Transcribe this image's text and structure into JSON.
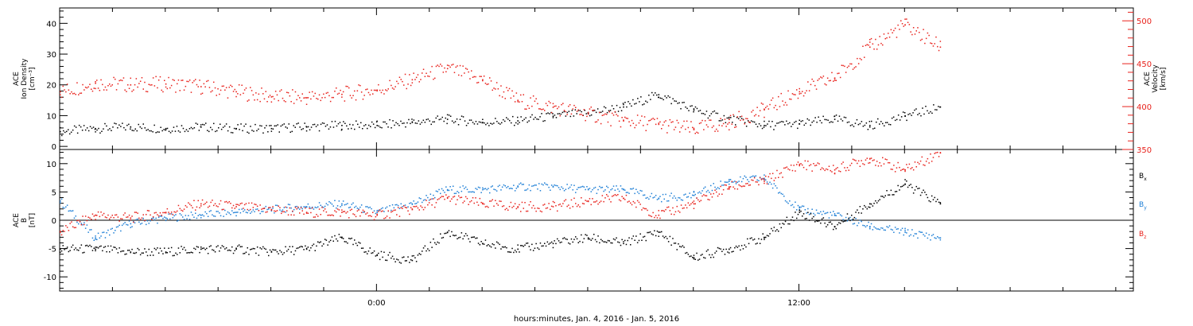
{
  "colors": {
    "black": "#000000",
    "red": "#e8221c",
    "blue": "#1e7fd6",
    "background": "#ffffff"
  },
  "time_axis": {
    "label": "hours:minutes, Jan.  4, 2016 - Jan.  5, 2016",
    "range_hours": [
      -9,
      21.5
    ],
    "major_ticks": [
      {
        "value": 0,
        "label": "0:00"
      },
      {
        "value": 12,
        "label": "12:00"
      }
    ],
    "minor_tick_step_hours": 1.5
  },
  "chart_data": [
    {
      "type": "scatter",
      "panel": "plasma",
      "ylabel_left": [
        "ACE",
        "Ion Density",
        "[cm⁻³]"
      ],
      "ylabel_right": [
        "ACE",
        "Velocity",
        "[km/s]"
      ],
      "ylim_left": [
        -1,
        45
      ],
      "yticks_left": [
        0,
        10,
        20,
        30,
        40
      ],
      "ylim_right": [
        350,
        515
      ],
      "yticks_right": [
        350,
        400,
        450,
        500
      ],
      "grid": false,
      "series": [
        {
          "axis": "left",
          "color": "black",
          "x": [
            -9.0,
            -8.0,
            -7.0,
            -6.0,
            -5.0,
            -4.0,
            -3.0,
            -2.0,
            -1.0,
            0.0,
            1.0,
            2.0,
            3.0,
            4.0,
            5.0,
            6.0,
            7.0,
            8.0,
            9.0,
            10.0,
            11.0,
            12.0,
            13.0,
            14.0,
            15.0,
            16.0
          ],
          "y": [
            5,
            6,
            6.5,
            6,
            6.5,
            6,
            6,
            6.5,
            7,
            7,
            8,
            9,
            8,
            8.5,
            10,
            11,
            13,
            17,
            12,
            9,
            7,
            7.5,
            9,
            7,
            10,
            13
          ]
        },
        {
          "axis": "right",
          "color": "red",
          "x": [
            -9.0,
            -8.0,
            -7.0,
            -6.0,
            -5.0,
            -4.0,
            -3.0,
            -2.0,
            -1.0,
            0.0,
            1.0,
            2.0,
            3.0,
            4.0,
            5.0,
            6.0,
            7.0,
            8.0,
            9.0,
            10.0,
            11.0,
            12.0,
            13.0,
            14.0,
            15.0,
            16.0
          ],
          "y": [
            418,
            428,
            426,
            427,
            424,
            418,
            412,
            411,
            415,
            420,
            432,
            445,
            432,
            408,
            400,
            392,
            384,
            380,
            374,
            382,
            397,
            418,
            434,
            470,
            496,
            470
          ]
        }
      ]
    },
    {
      "type": "scatter",
      "panel": "magnetic-field",
      "ylabel_left": [
        "ACE",
        "B",
        "[nT]"
      ],
      "ylim": [
        -12.5,
        12.5
      ],
      "yticks": [
        -10,
        -5,
        0,
        5,
        10
      ],
      "zero_line": true,
      "grid": false,
      "legend_position": "right",
      "legend": [
        {
          "name": "B",
          "subscript": "x",
          "color": "black"
        },
        {
          "name": "B",
          "subscript": "y",
          "color": "blue"
        },
        {
          "name": "B",
          "subscript": "z",
          "color": "red"
        }
      ],
      "series": [
        {
          "name": "Bx",
          "color": "black",
          "x": [
            -9.0,
            -8.0,
            -7.0,
            -6.0,
            -5.0,
            -4.0,
            -3.0,
            -2.0,
            -1.0,
            0.0,
            1.0,
            2.0,
            3.0,
            4.0,
            5.0,
            6.0,
            7.0,
            8.0,
            9.0,
            10.0,
            11.0,
            12.0,
            13.0,
            14.0,
            15.0,
            16.0
          ],
          "y": [
            -5,
            -5,
            -5.5,
            -5.5,
            -5,
            -5,
            -5.5,
            -5,
            -3,
            -6,
            -7,
            -2,
            -4,
            -5,
            -4,
            -3,
            -4,
            -2,
            -6.5,
            -5,
            -3,
            1.5,
            -1,
            3,
            6.5,
            3
          ]
        },
        {
          "name": "By",
          "color": "blue",
          "x": [
            -9.0,
            -8.0,
            -7.0,
            -6.0,
            -5.0,
            -4.0,
            -3.0,
            -2.0,
            -1.0,
            0.0,
            1.0,
            2.0,
            3.0,
            4.0,
            5.0,
            6.0,
            7.0,
            8.0,
            9.0,
            10.0,
            11.0,
            12.0,
            13.0,
            14.0,
            15.0,
            16.0
          ],
          "y": [
            3.5,
            -3,
            -0.5,
            0.5,
            1,
            1.5,
            2,
            2.5,
            3,
            1.5,
            3,
            5.5,
            5.5,
            6,
            6,
            5.5,
            5.5,
            4,
            4.5,
            7,
            7.5,
            2,
            1,
            -1,
            -2,
            -3
          ]
        },
        {
          "name": "Bz",
          "color": "red",
          "x": [
            -9.0,
            -8.0,
            -7.0,
            -6.0,
            -5.0,
            -4.0,
            -3.0,
            -2.0,
            -1.0,
            0.0,
            1.0,
            2.0,
            3.0,
            4.0,
            5.0,
            6.0,
            7.0,
            8.0,
            9.0,
            10.0,
            11.0,
            12.0,
            13.0,
            14.0,
            15.0,
            16.0
          ],
          "y": [
            -2,
            1,
            0.5,
            1.5,
            3,
            2.5,
            2,
            1.5,
            1.5,
            1,
            2,
            4,
            3,
            2.5,
            2.5,
            3.5,
            4,
            1,
            3,
            6,
            7,
            10,
            9,
            11,
            9,
            12
          ]
        }
      ]
    }
  ]
}
